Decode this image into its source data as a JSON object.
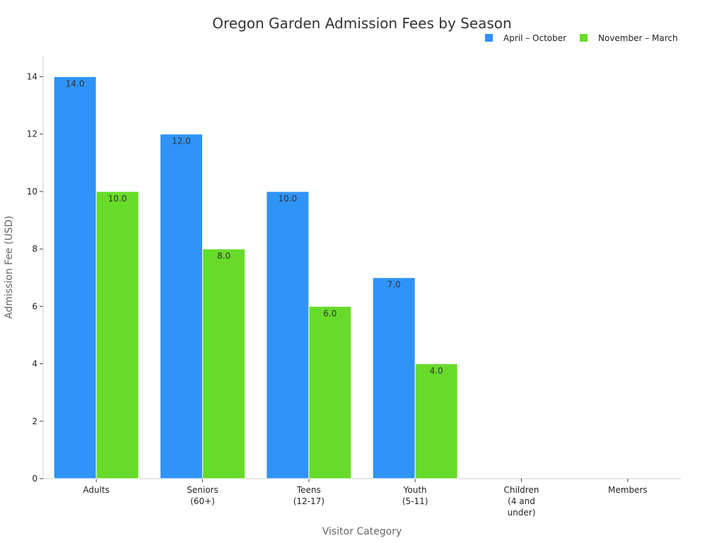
{
  "chart_data": {
    "type": "bar",
    "title": "Oregon Garden Admission Fees by Season",
    "xlabel": "Visitor Category",
    "ylabel": "Admission Fee (USD)",
    "categories": [
      [
        "Adults"
      ],
      [
        "Seniors",
        "(60+)"
      ],
      [
        "Teens",
        "(12-17)"
      ],
      [
        "Youth",
        "(5-11)"
      ],
      [
        "Children",
        "(4 and",
        "under)"
      ],
      [
        "Members"
      ]
    ],
    "series": [
      {
        "name": "April – October",
        "color": "#3093f7",
        "values": [
          14.0,
          12.0,
          10.0,
          7.0,
          null,
          null
        ]
      },
      {
        "name": "November – March",
        "color": "#67db2a",
        "values": [
          10.0,
          8.0,
          6.0,
          4.0,
          null,
          null
        ]
      }
    ],
    "ylim": [
      0,
      14.7
    ],
    "yticks": [
      0,
      2,
      4,
      6,
      8,
      10,
      12,
      14
    ],
    "data_labels": true,
    "legend_position": "top-right",
    "grid": false
  }
}
